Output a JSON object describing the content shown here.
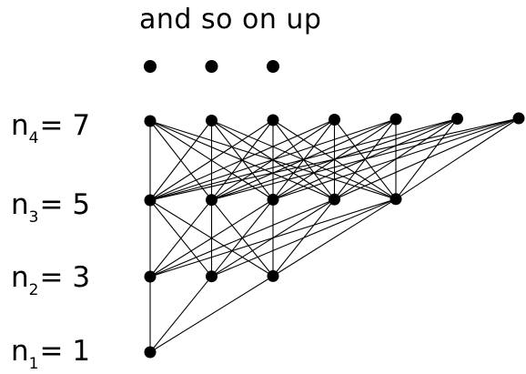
{
  "caption": "and so on up",
  "levels": [
    {
      "var": "n",
      "sub": "4",
      "eq": "= 7",
      "count": 7
    },
    {
      "var": "n",
      "sub": "3",
      "eq": "= 5",
      "count": 5
    },
    {
      "var": "n",
      "sub": "2",
      "eq": "= 3",
      "count": 3
    },
    {
      "var": "n",
      "sub": "1",
      "eq": "= 1",
      "count": 1
    }
  ],
  "continuation_dots": 3,
  "colors": {
    "node": "#000000",
    "edge": "#000000",
    "background": "#ffffff"
  }
}
